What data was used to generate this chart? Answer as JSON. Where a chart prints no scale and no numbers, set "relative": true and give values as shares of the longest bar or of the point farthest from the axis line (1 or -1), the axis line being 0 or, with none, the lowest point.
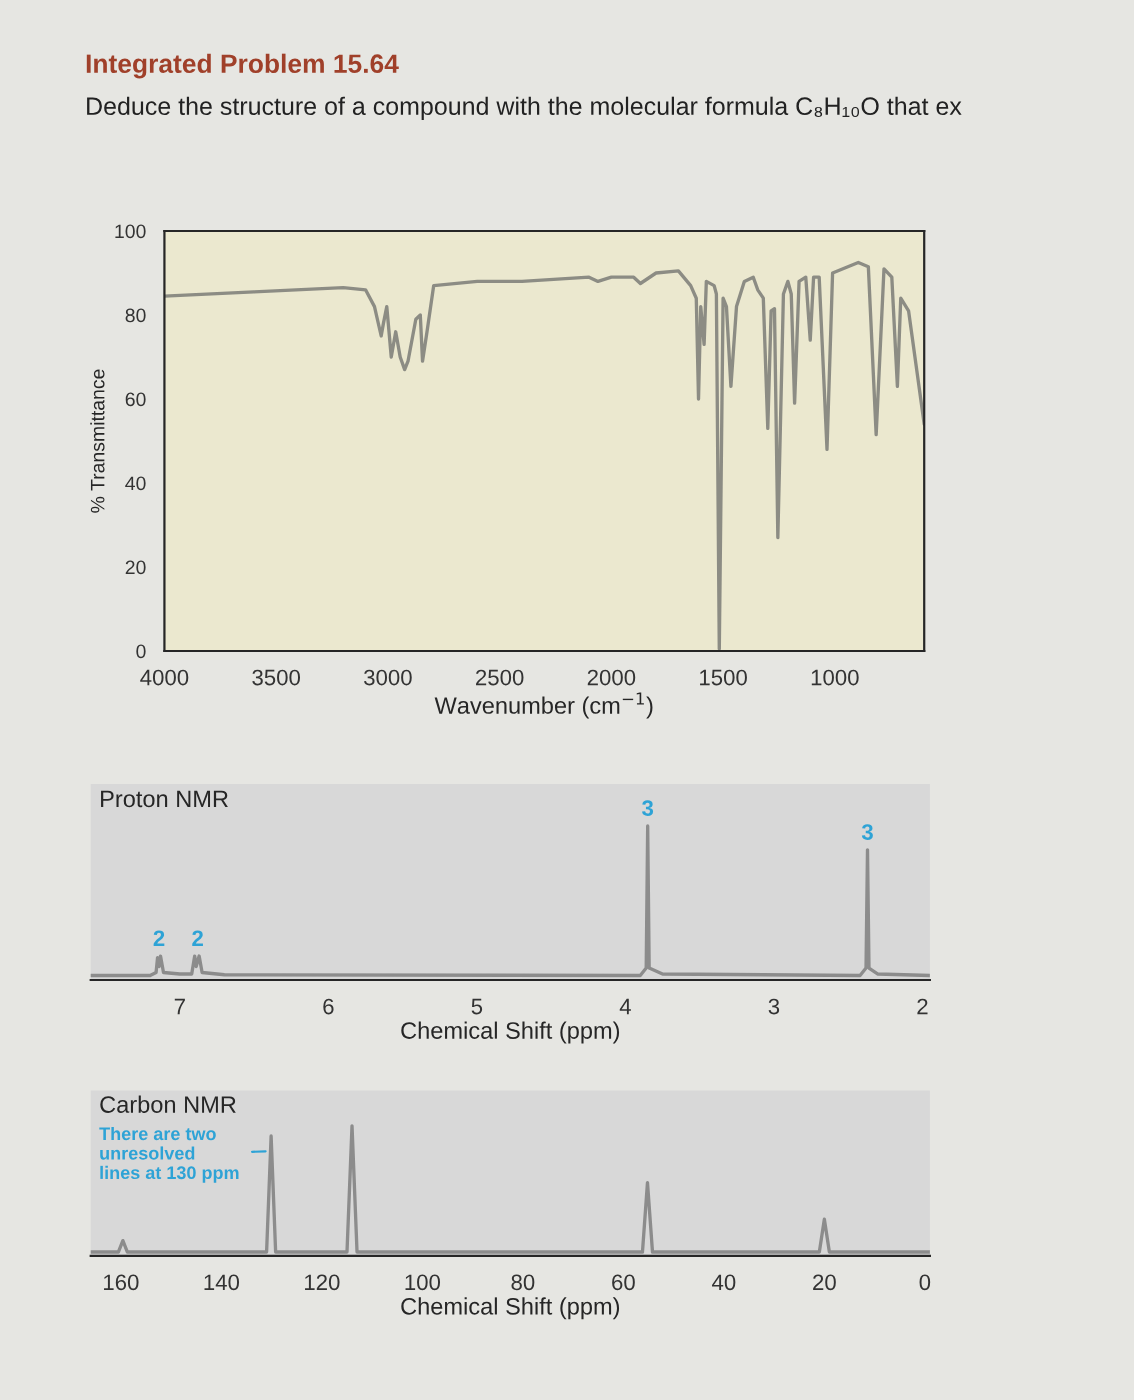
{
  "chart_data": [
    {
      "type": "line",
      "title": "Integrated Problem 15.64",
      "subtitle": "Deduce the structure of a compound with the molecular formula C₈H₁₀O that ex",
      "xlabel": "Wavenumber (cm$^{−1}$)",
      "ylabel": "% Transmittance",
      "xlim": [
        4000,
        600
      ],
      "ylim": [
        0,
        100
      ],
      "xticks": [
        4000,
        3500,
        3000,
        2500,
        2000,
        1500,
        1000
      ],
      "yticks": [
        0,
        20,
        40,
        60,
        80,
        100
      ],
      "grid": false,
      "legend": false,
      "line_style": "solid",
      "marker": "none",
      "series": [
        {
          "color": "#8c8c84",
          "x": [
            4000,
            3600,
            3200,
            3100,
            3060,
            3030,
            3020,
            3005,
            2985,
            2965,
            2945,
            2925,
            2910,
            2875,
            2855,
            2845,
            2825,
            2795,
            2600,
            2400,
            2100,
            2060,
            2000,
            1900,
            1870,
            1800,
            1700,
            1645,
            1620,
            1610,
            1600,
            1585,
            1575,
            1540,
            1530,
            1517,
            1500,
            1485,
            1465,
            1440,
            1405,
            1365,
            1345,
            1320,
            1300,
            1285,
            1270,
            1255,
            1230,
            1210,
            1195,
            1180,
            1160,
            1130,
            1110,
            1095,
            1070,
            1035,
            1010,
            895,
            850,
            815,
            780,
            745,
            720,
            705,
            670,
            600
          ],
          "values": [
            84.5,
            85.5,
            86.5,
            86,
            82,
            75,
            78,
            82,
            70,
            76,
            70,
            67,
            69,
            79,
            80,
            69,
            76,
            87,
            88,
            88,
            89,
            88,
            89,
            89,
            87.5,
            90,
            90.5,
            87,
            84,
            60,
            82,
            73,
            88,
            87,
            85,
            0.5,
            84,
            82,
            63,
            82,
            88,
            89,
            86,
            84,
            53,
            81,
            81.5,
            27,
            85,
            88,
            85,
            59,
            88,
            89,
            74,
            89,
            89,
            48,
            90,
            92.5,
            91.5,
            51.5,
            91,
            89,
            63,
            84,
            81,
            54
          ]
        }
      ]
    },
    {
      "type": "line",
      "title": "Proton NMR",
      "xlabel": "Chemical Shift (ppm)",
      "xlim": [
        7.6,
        1.95
      ],
      "xticks": [
        7,
        6,
        5,
        4,
        3,
        2
      ],
      "relative": true,
      "tick_labels": "x",
      "grid": false,
      "legend": false,
      "line_style": "solid",
      "marker": "none",
      "series": [
        {
          "color": "#8c8c8c",
          "x": [
            7.6,
            7.2,
            7.16,
            7.15,
            7.14,
            7.13,
            7.11,
            7.0,
            6.92,
            6.9,
            6.89,
            6.87,
            6.85,
            6.7,
            3.9,
            3.86,
            3.85,
            3.84,
            3.75,
            2.42,
            2.38,
            2.37,
            2.36,
            2.3,
            1.95
          ],
          "values": [
            0,
            0,
            0.02,
            0.12,
            0.06,
            0.13,
            0.02,
            0.01,
            0.01,
            0.13,
            0.06,
            0.13,
            0.02,
            0.005,
            0,
            0.05,
            1,
            0.05,
            0.01,
            0,
            0.05,
            0.84,
            0.05,
            0.01,
            0
          ]
        }
      ],
      "annotations": [
        {
          "text": "2",
          "x": 7.14,
          "y": 0.13
        },
        {
          "text": "2",
          "x": 6.88,
          "y": 0.13
        },
        {
          "text": "3",
          "x": 3.85,
          "y": 1
        },
        {
          "text": "3",
          "x": 2.37,
          "y": 0.84
        }
      ]
    },
    {
      "type": "line",
      "title": "Carbon NMR",
      "xlabel": "Chemical Shift (ppm)",
      "xlim": [
        166,
        -1
      ],
      "xticks": [
        160,
        140,
        120,
        100,
        80,
        60,
        40,
        20,
        0
      ],
      "relative": true,
      "tick_labels": "x",
      "grid": false,
      "legend": false,
      "line_style": "solid",
      "marker": "none",
      "series": [
        {
          "color": "#8c8c8c",
          "x": [
            166,
            160.5,
            159.6,
            158.7,
            131,
            130.1,
            129.2,
            115,
            114,
            113,
            56.2,
            55.2,
            54.2,
            21,
            20,
            19,
            -1
          ],
          "values": [
            0,
            0,
            0.09,
            0,
            0,
            0.92,
            0,
            0,
            1,
            0,
            0,
            0.55,
            0,
            0,
            0.26,
            0,
            0
          ]
        }
      ],
      "annotations": [
        {
          "text": "There are two\nunresolved\nlines at 130 ppm",
          "x": 130.1,
          "y": 0.8
        }
      ]
    }
  ]
}
